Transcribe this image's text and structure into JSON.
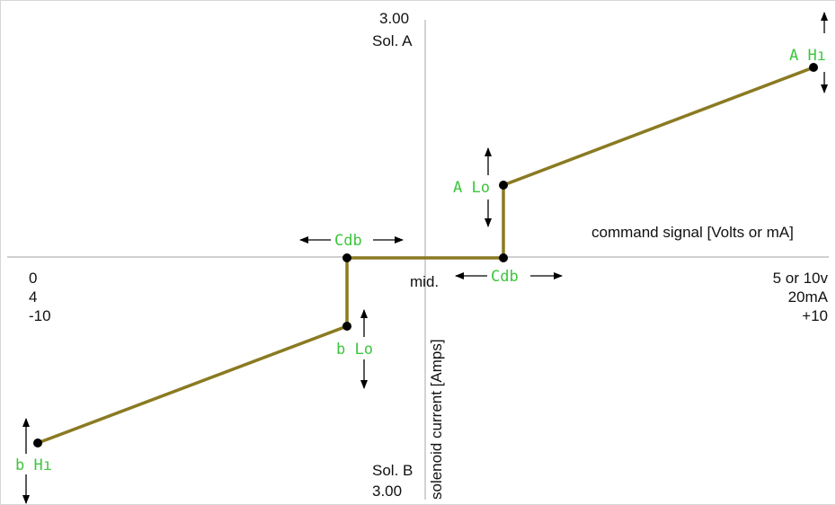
{
  "colors": {
    "axis": "#b4b4b4",
    "curve": "#8a7a22",
    "point": "#000000",
    "segment_text": "#3cc63c",
    "arrow": "#000000",
    "text": "#111111"
  },
  "axes": {
    "y_top_value": "3.00",
    "y_top_label": "Sol. A",
    "y_bottom_value": "3.00",
    "y_bottom_label": "Sol. B",
    "y_title": "solenoid current [Amps]",
    "x_title": "command signal [Volts or mA]",
    "x_mid": "mid.",
    "x_left": [
      "0",
      "4",
      "-10"
    ],
    "x_right": [
      "5 or 10v",
      "20mA",
      "+10"
    ]
  },
  "parameters": {
    "a_hi": "A  Hı",
    "a_lo": "A  Lo",
    "b_hi": "b  Hı",
    "b_lo": "b  Lo",
    "cdb_left": "Cdb",
    "cdb_right": "Cdb"
  }
}
